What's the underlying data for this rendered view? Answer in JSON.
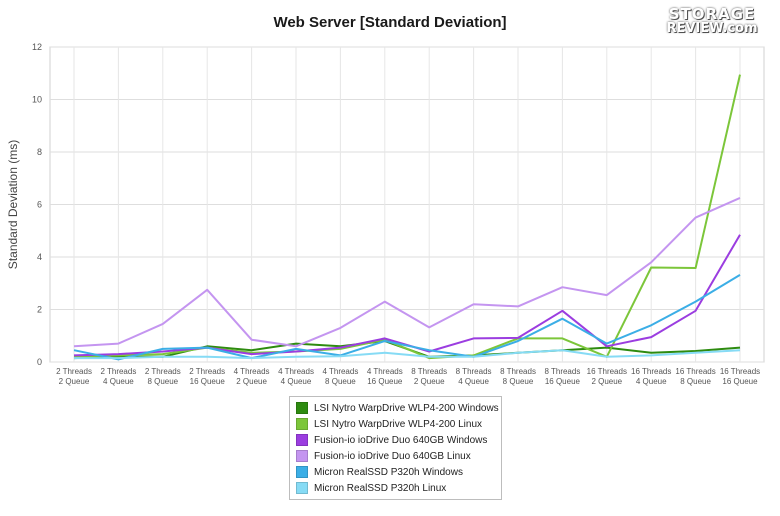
{
  "logo": {
    "line1": "STORAGE",
    "line2": "REVIEW.com"
  },
  "chart_data": {
    "type": "line",
    "title": "Web Server [Standard Deviation]",
    "xlabel": "",
    "ylabel": "Standard Deviation (ms)",
    "ylim": [
      0,
      12
    ],
    "yticks": [
      0,
      2,
      4,
      6,
      8,
      10,
      12
    ],
    "grid": true,
    "legend_position": "bottom",
    "categories": [
      [
        "2 Threads",
        "2 Queue"
      ],
      [
        "2 Threads",
        "4 Queue"
      ],
      [
        "2 Threads",
        "8 Queue"
      ],
      [
        "2 Threads",
        "16 Queue"
      ],
      [
        "4 Threads",
        "2 Queue"
      ],
      [
        "4 Threads",
        "4 Queue"
      ],
      [
        "4 Threads",
        "8 Queue"
      ],
      [
        "4 Threads",
        "16 Queue"
      ],
      [
        "8 Threads",
        "2 Queue"
      ],
      [
        "8 Threads",
        "4 Queue"
      ],
      [
        "8 Threads",
        "8 Queue"
      ],
      [
        "8 Threads",
        "16 Queue"
      ],
      [
        "16 Threads",
        "2 Queue"
      ],
      [
        "16 Threads",
        "4 Queue"
      ],
      [
        "16 Threads",
        "8 Queue"
      ],
      [
        "16 Threads",
        "16 Queue"
      ]
    ],
    "series": [
      {
        "name": "LSI Nytro WarpDrive WLP4-200 Windows",
        "color": "#2e8b10",
        "values": [
          0.15,
          0.2,
          0.2,
          0.6,
          0.45,
          0.7,
          0.6,
          0.8,
          0.2,
          0.25,
          0.35,
          0.45,
          0.55,
          0.35,
          0.42,
          0.55
        ]
      },
      {
        "name": "LSI Nytro WarpDrive WLP4-200 Linux",
        "color": "#7cc63a",
        "values": [
          0.2,
          0.25,
          0.3,
          0.55,
          0.35,
          0.4,
          0.5,
          0.85,
          0.15,
          0.25,
          0.9,
          0.9,
          0.2,
          3.6,
          3.58,
          10.95
        ]
      },
      {
        "name": "Fusion-io ioDrive Duo 640GB Windows",
        "color": "#9b3de0",
        "values": [
          0.25,
          0.3,
          0.4,
          0.55,
          0.3,
          0.4,
          0.55,
          0.9,
          0.4,
          0.9,
          0.92,
          1.95,
          0.6,
          0.95,
          1.95,
          4.85
        ]
      },
      {
        "name": "Fusion-io ioDrive Duo 640GB Linux",
        "color": "#c495f0",
        "values": [
          0.6,
          0.7,
          1.45,
          2.75,
          0.85,
          0.6,
          1.3,
          2.3,
          1.32,
          2.2,
          2.12,
          2.85,
          2.55,
          3.8,
          5.5,
          6.25
        ]
      },
      {
        "name": "Micron RealSSD P320h Windows",
        "color": "#3baee6",
        "values": [
          0.45,
          0.1,
          0.5,
          0.55,
          0.15,
          0.5,
          0.25,
          0.8,
          0.45,
          0.2,
          0.8,
          1.65,
          0.7,
          1.4,
          2.3,
          3.32
        ]
      },
      {
        "name": "Micron RealSSD P320h Linux",
        "color": "#86dbf5",
        "values": [
          0.15,
          0.15,
          0.2,
          0.2,
          0.15,
          0.2,
          0.22,
          0.35,
          0.2,
          0.2,
          0.35,
          0.45,
          0.2,
          0.25,
          0.35,
          0.45
        ]
      }
    ]
  }
}
